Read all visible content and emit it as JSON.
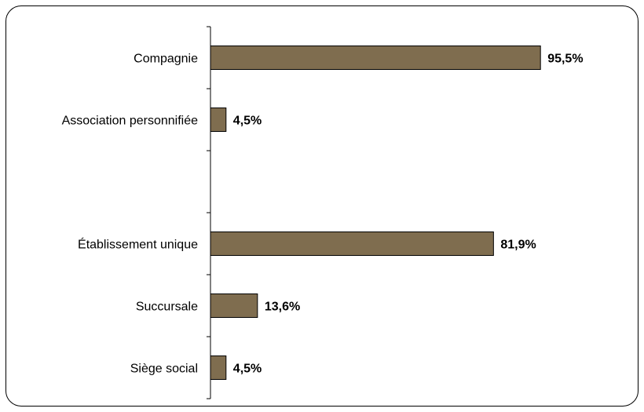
{
  "chart_data": {
    "type": "bar",
    "orientation": "horizontal",
    "categories": [
      "Compagnie",
      "Association personnifiée",
      "",
      "Établissement unique",
      "Succursale",
      "Siège social"
    ],
    "values": [
      95.5,
      4.5,
      null,
      81.9,
      13.6,
      4.5
    ],
    "value_labels": [
      "95,5%",
      "4,5%",
      "",
      "81,9%",
      "13,6%",
      "4,5%"
    ],
    "xlim": [
      0,
      100
    ],
    "grid": false,
    "legend": "none",
    "bar_color": "#7f6d4f",
    "bar_edge_color": "#000000"
  }
}
